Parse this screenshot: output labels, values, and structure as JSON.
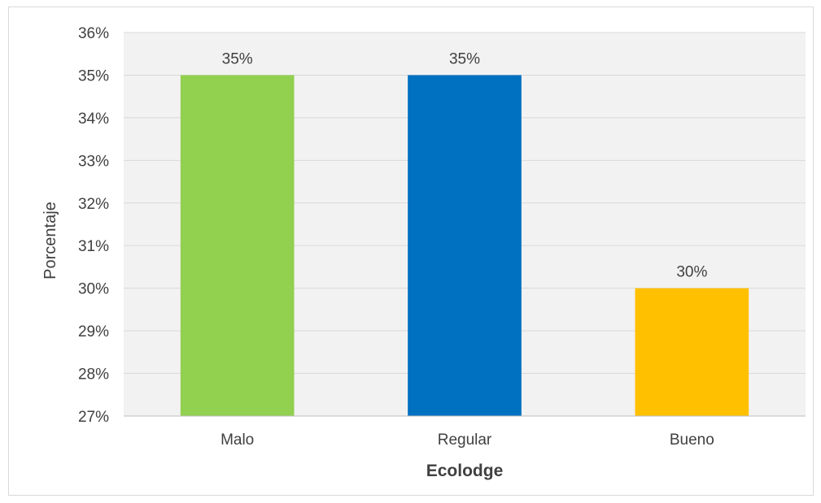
{
  "chart_data": {
    "type": "bar",
    "categories": [
      "Malo",
      "Regular",
      "Bueno"
    ],
    "values": [
      35,
      35,
      30
    ],
    "data_labels": [
      "35%",
      "35%",
      "30%"
    ],
    "colors": [
      "#92d050",
      "#0070c0",
      "#ffc000"
    ],
    "xlabel": "Ecolodge",
    "ylabel": "Porcentaje",
    "ylim": [
      27,
      36
    ],
    "yticks": [
      "27%",
      "28%",
      "29%",
      "30%",
      "31%",
      "32%",
      "33%",
      "34%",
      "35%",
      "36%"
    ],
    "grid": true,
    "plot_background": "#f2f2f2",
    "legend": "none"
  }
}
